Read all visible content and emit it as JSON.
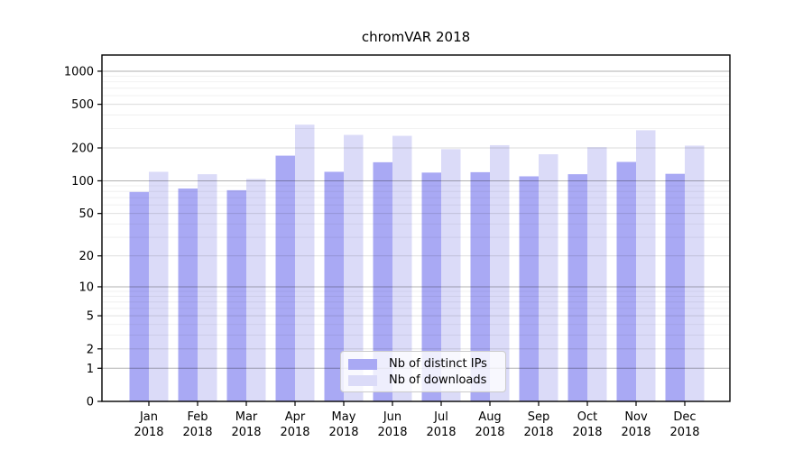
{
  "chart_data": {
    "type": "bar",
    "title": "chromVAR 2018",
    "categories": [
      "Jan",
      "Feb",
      "Mar",
      "Apr",
      "May",
      "Jun",
      "Jul",
      "Aug",
      "Sep",
      "Oct",
      "Nov",
      "Dec"
    ],
    "category_year": "2018",
    "series": [
      {
        "name": "Nb of distinct IPs",
        "color": "#a9a9f4",
        "values": [
          79,
          85,
          82,
          170,
          121,
          148,
          119,
          120,
          110,
          115,
          149,
          116
        ]
      },
      {
        "name": "Nb of downloads",
        "color": "#dbdbf8",
        "values": [
          121,
          115,
          104,
          326,
          263,
          258,
          195,
          212,
          175,
          203,
          290,
          210
        ]
      }
    ],
    "y_scale": "log10(1+x)",
    "ylim": [
      0,
      1390
    ],
    "y_ticks": [
      0,
      1,
      2,
      5,
      10,
      20,
      50,
      100,
      200,
      500,
      1000
    ],
    "y_minor_ticks": [
      3,
      4,
      6,
      7,
      8,
      9,
      30,
      40,
      60,
      70,
      80,
      90,
      300,
      400,
      600,
      700,
      800,
      900
    ],
    "grid": true,
    "legend": {
      "position": "inside-bottom-center",
      "labels": [
        "Nb of distinct IPs",
        "Nb of downloads"
      ]
    },
    "colors": {
      "axis": "#000000",
      "grid_decade": "rgba(0,0,0,0.30)",
      "grid_mid": "rgba(0,0,0,0.14)",
      "grid_minor": "rgba(0,0,0,0.07)",
      "title_text": "#000000",
      "tick_text": "#000000"
    }
  }
}
